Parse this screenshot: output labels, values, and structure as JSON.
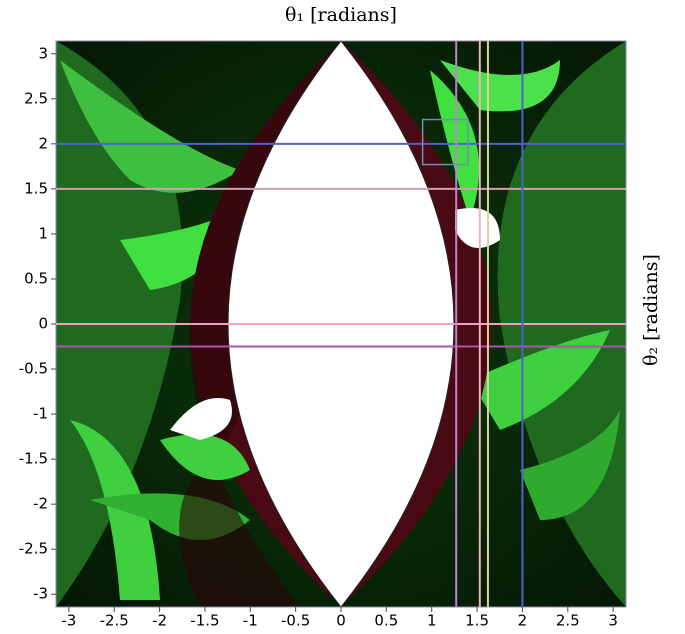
{
  "chart_data": {
    "type": "image",
    "title": "θ₁ [radians]",
    "y_label": "θ₂ [radians]",
    "xlim": [
      -3.1416,
      3.1416
    ],
    "ylim": [
      -3.1416,
      3.1416
    ],
    "xticks": [
      -3,
      -2.5,
      -2,
      -1.5,
      -1,
      -0.5,
      0,
      0.5,
      1,
      1.5,
      2,
      2.5,
      3
    ],
    "yticks": [
      -3,
      -2.5,
      -2,
      -1.5,
      -1,
      -0.5,
      0,
      0.5,
      1,
      1.5,
      2,
      2.5,
      3
    ],
    "vlines": [
      {
        "value": 1.27,
        "color": "#c080d0"
      },
      {
        "value": 1.53,
        "color": "#f0b0c0"
      },
      {
        "value": 1.62,
        "color": "#e0d0a0"
      },
      {
        "value": 2,
        "color": "#5060d0"
      }
    ],
    "hlines": [
      {
        "value": 2,
        "color": "#5060d0"
      },
      {
        "value": 1.5,
        "color": "#d0a0b0"
      },
      {
        "value": 0,
        "color": "#f0a0c0"
      },
      {
        "value": -0.25,
        "color": "#b050b0"
      }
    ],
    "box": {
      "x": [
        0.9,
        1.4
      ],
      "y": [
        1.77,
        2.27
      ],
      "color": "#7090b0"
    }
  }
}
